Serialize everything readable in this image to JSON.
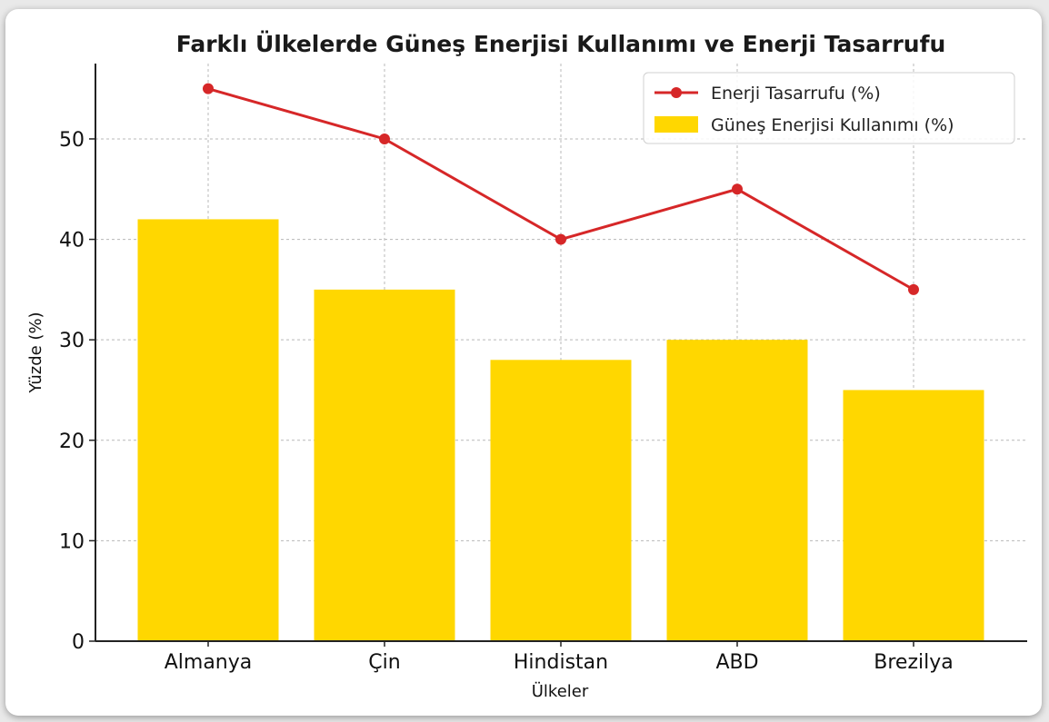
{
  "chart_data": {
    "type": "bar",
    "title": "Farklı Ülkelerde Güneş Enerjisi Kullanımı ve Enerji Tasarrufu",
    "xlabel": "Ülkeler",
    "ylabel": "Yüzde (%)",
    "categories": [
      "Almanya",
      "Çin",
      "Hindistan",
      "ABD",
      "Brezilya"
    ],
    "ylim": [
      0,
      57.5
    ],
    "yticks": [
      0,
      10,
      20,
      30,
      40,
      50
    ],
    "grid": true,
    "legend_position": "top-right",
    "series": [
      {
        "name": "Güneş Enerjisi Kullanımı (%)",
        "kind": "bar",
        "color": "#FFD700",
        "values": [
          42,
          35,
          28,
          30,
          25
        ]
      },
      {
        "name": "Enerji Tasarrufu (%)",
        "kind": "line",
        "color": "#D62728",
        "values": [
          55,
          50,
          40,
          45,
          35
        ]
      }
    ]
  }
}
